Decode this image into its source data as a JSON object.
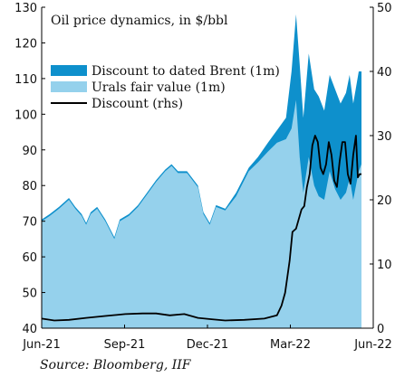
{
  "chart_data": {
    "type": "area",
    "title": "Oil price dynamics, in $/bbl",
    "source": "Source: Bloomberg, IIF",
    "x_ticks": [
      "Jun-21",
      "Sep-21",
      "Dec-21",
      "Mar-22",
      "Jun-22"
    ],
    "x_range": [
      "2021-06-01",
      "2022-06-01"
    ],
    "y_left": {
      "min": 40,
      "max": 130,
      "ticks": [
        40,
        50,
        60,
        70,
        80,
        90,
        100,
        110,
        120,
        130
      ]
    },
    "y_right": {
      "min": 0,
      "max": 50,
      "ticks": [
        0,
        10,
        20,
        30,
        40,
        50
      ]
    },
    "grid": false,
    "legend_position": "top-left",
    "colors": {
      "discount": "#0e90cc",
      "fair_value": "#95d1ec",
      "line": "#000000"
    },
    "series": [
      {
        "name": "Discount to dated Brent (1m)",
        "type": "area",
        "axis": "left",
        "values": [
          [
            "2021-06-01",
            70.5
          ],
          [
            "2021-06-10",
            72
          ],
          [
            "2021-06-20",
            74
          ],
          [
            "2021-07-01",
            76.5
          ],
          [
            "2021-07-08",
            74
          ],
          [
            "2021-07-15",
            72
          ],
          [
            "2021-07-20",
            69.5
          ],
          [
            "2021-07-25",
            72.5
          ],
          [
            "2021-08-01",
            74
          ],
          [
            "2021-08-10",
            70.5
          ],
          [
            "2021-08-20",
            65.5
          ],
          [
            "2021-08-26",
            70.5
          ],
          [
            "2021-09-05",
            72
          ],
          [
            "2021-09-15",
            74.5
          ],
          [
            "2021-09-25",
            78
          ],
          [
            "2021-10-05",
            81.5
          ],
          [
            "2021-10-15",
            84.5
          ],
          [
            "2021-10-22",
            86
          ],
          [
            "2021-10-29",
            84
          ],
          [
            "2021-11-08",
            84
          ],
          [
            "2021-11-20",
            80
          ],
          [
            "2021-11-26",
            72.5
          ],
          [
            "2021-12-03",
            69.5
          ],
          [
            "2021-12-10",
            74.5
          ],
          [
            "2021-12-20",
            73.5
          ],
          [
            "2022-01-01",
            78
          ],
          [
            "2022-01-15",
            85
          ],
          [
            "2022-01-25",
            88
          ],
          [
            "2022-02-05",
            92
          ],
          [
            "2022-02-15",
            95.5
          ],
          [
            "2022-02-25",
            99
          ],
          [
            "2022-03-03",
            112
          ],
          [
            "2022-03-08",
            128
          ],
          [
            "2022-03-12",
            114
          ],
          [
            "2022-03-16",
            99
          ],
          [
            "2022-03-22",
            117
          ],
          [
            "2022-03-28",
            107
          ],
          [
            "2022-04-02",
            105
          ],
          [
            "2022-04-08",
            101
          ],
          [
            "2022-04-14",
            111
          ],
          [
            "2022-04-20",
            107
          ],
          [
            "2022-04-26",
            103
          ],
          [
            "2022-05-02",
            106
          ],
          [
            "2022-05-06",
            111
          ],
          [
            "2022-05-10",
            103
          ],
          [
            "2022-05-16",
            112
          ],
          [
            "2022-05-19",
            112
          ]
        ]
      },
      {
        "name": "Urals fair value (1m)",
        "type": "area",
        "axis": "left",
        "values": [
          [
            "2021-06-01",
            70
          ],
          [
            "2021-06-10",
            71.5
          ],
          [
            "2021-06-20",
            73.5
          ],
          [
            "2021-07-01",
            76
          ],
          [
            "2021-07-08",
            73.5
          ],
          [
            "2021-07-15",
            71.5
          ],
          [
            "2021-07-20",
            69
          ],
          [
            "2021-07-25",
            72
          ],
          [
            "2021-08-01",
            73.5
          ],
          [
            "2021-08-10",
            70
          ],
          [
            "2021-08-20",
            65
          ],
          [
            "2021-08-26",
            70
          ],
          [
            "2021-09-05",
            71.5
          ],
          [
            "2021-09-15",
            74
          ],
          [
            "2021-09-25",
            77.5
          ],
          [
            "2021-10-05",
            81
          ],
          [
            "2021-10-15",
            84
          ],
          [
            "2021-10-22",
            85.5
          ],
          [
            "2021-10-29",
            83.5
          ],
          [
            "2021-11-08",
            83.5
          ],
          [
            "2021-11-20",
            79.5
          ],
          [
            "2021-11-26",
            72
          ],
          [
            "2021-12-03",
            69
          ],
          [
            "2021-12-10",
            74
          ],
          [
            "2021-12-20",
            73
          ],
          [
            "2022-01-01",
            77
          ],
          [
            "2022-01-15",
            84
          ],
          [
            "2022-01-25",
            86.5
          ],
          [
            "2022-02-05",
            89.5
          ],
          [
            "2022-02-15",
            92
          ],
          [
            "2022-02-25",
            93
          ],
          [
            "2022-03-03",
            96
          ],
          [
            "2022-03-08",
            104
          ],
          [
            "2022-03-12",
            88
          ],
          [
            "2022-03-16",
            78
          ],
          [
            "2022-03-22",
            88
          ],
          [
            "2022-03-28",
            80
          ],
          [
            "2022-04-02",
            77
          ],
          [
            "2022-04-08",
            76
          ],
          [
            "2022-04-14",
            84
          ],
          [
            "2022-04-20",
            79
          ],
          [
            "2022-04-26",
            76
          ],
          [
            "2022-05-02",
            78
          ],
          [
            "2022-05-06",
            82
          ],
          [
            "2022-05-10",
            76
          ],
          [
            "2022-05-16",
            84
          ],
          [
            "2022-05-19",
            86
          ]
        ]
      },
      {
        "name": "Discount (rhs)",
        "type": "line",
        "axis": "right",
        "values": [
          [
            "2021-06-01",
            1.5
          ],
          [
            "2021-06-15",
            1.2
          ],
          [
            "2021-07-01",
            1.3
          ],
          [
            "2021-07-20",
            1.6
          ],
          [
            "2021-08-10",
            1.9
          ],
          [
            "2021-09-01",
            2.2
          ],
          [
            "2021-09-20",
            2.3
          ],
          [
            "2021-10-05",
            2.3
          ],
          [
            "2021-10-20",
            2.0
          ],
          [
            "2021-11-05",
            2.2
          ],
          [
            "2021-11-20",
            1.6
          ],
          [
            "2021-12-05",
            1.4
          ],
          [
            "2021-12-20",
            1.2
          ],
          [
            "2022-01-10",
            1.3
          ],
          [
            "2022-02-01",
            1.5
          ],
          [
            "2022-02-15",
            2.0
          ],
          [
            "2022-02-20",
            3.5
          ],
          [
            "2022-02-24",
            5.5
          ],
          [
            "2022-02-27",
            8.5
          ],
          [
            "2022-03-01",
            10.5
          ],
          [
            "2022-03-04",
            15
          ],
          [
            "2022-03-08",
            15.5
          ],
          [
            "2022-03-11",
            17
          ],
          [
            "2022-03-14",
            18.5
          ],
          [
            "2022-03-17",
            19
          ],
          [
            "2022-03-20",
            22
          ],
          [
            "2022-03-23",
            24
          ],
          [
            "2022-03-26",
            28.5
          ],
          [
            "2022-03-29",
            30
          ],
          [
            "2022-04-01",
            29
          ],
          [
            "2022-04-04",
            25
          ],
          [
            "2022-04-07",
            24
          ],
          [
            "2022-04-10",
            25.5
          ],
          [
            "2022-04-13",
            29
          ],
          [
            "2022-04-16",
            27
          ],
          [
            "2022-04-19",
            23
          ],
          [
            "2022-04-22",
            22
          ],
          [
            "2022-04-25",
            26
          ],
          [
            "2022-04-28",
            29
          ],
          [
            "2022-05-01",
            29
          ],
          [
            "2022-05-04",
            24
          ],
          [
            "2022-05-07",
            22.5
          ],
          [
            "2022-05-10",
            27
          ],
          [
            "2022-05-13",
            30
          ],
          [
            "2022-05-15",
            23.5
          ],
          [
            "2022-05-17",
            24
          ],
          [
            "2022-05-19",
            24
          ]
        ]
      }
    ]
  }
}
